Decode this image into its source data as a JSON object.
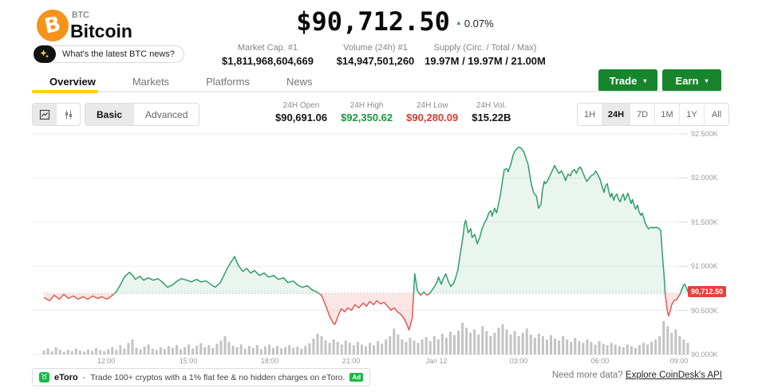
{
  "header": {
    "symbol": "BTC",
    "name": "Bitcoin",
    "news_prompt": "What's the latest BTC news?",
    "price": "$90,712.50",
    "change_pct": "0.07%",
    "stats": [
      {
        "label": "Market Cap. #1",
        "value": "$1,811,968,604,669"
      },
      {
        "label": "Volume (24h) #1",
        "value": "$14,947,501,260"
      },
      {
        "label": "Supply (Circ. / Total / Max)",
        "value": "19.97M / 19.97M / 21.00M"
      }
    ],
    "trade_label": "Trade",
    "earn_label": "Earn"
  },
  "tabs": [
    {
      "label": "Overview",
      "active": true
    },
    {
      "label": "Markets",
      "active": false
    },
    {
      "label": "Platforms",
      "active": false
    },
    {
      "label": "News",
      "active": false
    }
  ],
  "toolbar": {
    "mode_basic": "Basic",
    "mode_advanced": "Advanced",
    "ohlc": [
      {
        "label": "24H Open",
        "value": "$90,691.06",
        "tone": "neutral"
      },
      {
        "label": "24H High",
        "value": "$92,350.62",
        "tone": "up"
      },
      {
        "label": "24H Low",
        "value": "$90,280.09",
        "tone": "down"
      },
      {
        "label": "24H Vol.",
        "value": "$15.22B",
        "tone": "neutral"
      }
    ],
    "ranges": [
      {
        "label": "1H",
        "active": false
      },
      {
        "label": "24H",
        "active": true
      },
      {
        "label": "7D",
        "active": false
      },
      {
        "label": "1M",
        "active": false
      },
      {
        "label": "1Y",
        "active": false
      },
      {
        "label": "All",
        "active": false
      }
    ]
  },
  "colors": {
    "brand_orange": "#f7931a",
    "accent_yellow": "#fcd303",
    "cta_green": "#17852c",
    "line_up": "#2f9e6a",
    "line_down": "#e25a52",
    "badge_red": "#e2443c",
    "high_text": "#179a3f",
    "low_text": "#dd3b2f",
    "ad_green": "#19b847"
  },
  "chart_data": {
    "type": "line",
    "ylim": [
      90000,
      92500
    ],
    "open_price": 90691.06,
    "last_price": 90712.5,
    "last_price_label": "90,712.50",
    "high_price": 92350.62,
    "low_price": 90280.09,
    "y_ticks": [
      {
        "label": "92.500K",
        "value": 92500
      },
      {
        "label": "92.000K",
        "value": 92000
      },
      {
        "label": "91.500K",
        "value": 91500
      },
      {
        "label": "91.000K",
        "value": 91000
      },
      {
        "label": "90.500K",
        "value": 90500
      },
      {
        "label": "90.000K",
        "value": 90000
      }
    ],
    "x_ticks": [
      {
        "label": "12:00",
        "f": 0.0967
      },
      {
        "label": "15:00",
        "f": 0.2243
      },
      {
        "label": "18:00",
        "f": 0.3507
      },
      {
        "label": "21:00",
        "f": 0.4771
      },
      {
        "label": "Jan 12",
        "f": 0.6097
      },
      {
        "label": "03:00",
        "f": 0.7373
      },
      {
        "label": "06:00",
        "f": 0.8637
      },
      {
        "label": "09:00",
        "f": 0.9864
      }
    ],
    "points": [
      [
        0,
        90645
      ],
      [
        0.009,
        90610
      ],
      [
        0.016,
        90672
      ],
      [
        0.024,
        90627
      ],
      [
        0.031,
        90681
      ],
      [
        0.038,
        90636
      ],
      [
        0.046,
        90663
      ],
      [
        0.053,
        90627
      ],
      [
        0.061,
        90654
      ],
      [
        0.068,
        90627
      ],
      [
        0.076,
        90663
      ],
      [
        0.083,
        90636
      ],
      [
        0.09,
        90654
      ],
      [
        0.098,
        90627
      ],
      [
        0.105,
        90663
      ],
      [
        0.112,
        90708
      ],
      [
        0.118,
        90780
      ],
      [
        0.125,
        90878
      ],
      [
        0.133,
        90932
      ],
      [
        0.138,
        90896
      ],
      [
        0.142,
        90851
      ],
      [
        0.149,
        90887
      ],
      [
        0.155,
        90842
      ],
      [
        0.162,
        90869
      ],
      [
        0.17,
        90842
      ],
      [
        0.177,
        90860
      ],
      [
        0.185,
        90815
      ],
      [
        0.192,
        90762
      ],
      [
        0.2,
        90789
      ],
      [
        0.207,
        90833
      ],
      [
        0.214,
        90860
      ],
      [
        0.222,
        90842
      ],
      [
        0.229,
        90824
      ],
      [
        0.237,
        90851
      ],
      [
        0.244,
        90824
      ],
      [
        0.252,
        90833
      ],
      [
        0.259,
        90797
      ],
      [
        0.266,
        90762
      ],
      [
        0.274,
        90815
      ],
      [
        0.28,
        90905
      ],
      [
        0.286,
        90994
      ],
      [
        0.293,
        91075
      ],
      [
        0.296,
        91111
      ],
      [
        0.302,
        91012
      ],
      [
        0.309,
        90941
      ],
      [
        0.315,
        90976
      ],
      [
        0.321,
        90923
      ],
      [
        0.327,
        90950
      ],
      [
        0.335,
        90896
      ],
      [
        0.342,
        90923
      ],
      [
        0.349,
        90878
      ],
      [
        0.357,
        90896
      ],
      [
        0.364,
        90851
      ],
      [
        0.372,
        90869
      ],
      [
        0.379,
        90815
      ],
      [
        0.387,
        90833
      ],
      [
        0.394,
        90789
      ],
      [
        0.401,
        90762
      ],
      [
        0.409,
        90780
      ],
      [
        0.416,
        90735
      ],
      [
        0.424,
        90708
      ],
      [
        0.431,
        90672
      ],
      [
        0.437,
        90565
      ],
      [
        0.444,
        90430
      ],
      [
        0.449,
        90359
      ],
      [
        0.452,
        90341
      ],
      [
        0.457,
        90439
      ],
      [
        0.462,
        90520
      ],
      [
        0.467,
        90484
      ],
      [
        0.472,
        90529
      ],
      [
        0.478,
        90502
      ],
      [
        0.483,
        90565
      ],
      [
        0.489,
        90529
      ],
      [
        0.496,
        90583
      ],
      [
        0.501,
        90547
      ],
      [
        0.506,
        90601
      ],
      [
        0.512,
        90565
      ],
      [
        0.517,
        90610
      ],
      [
        0.523,
        90574
      ],
      [
        0.528,
        90592
      ],
      [
        0.534,
        90547
      ],
      [
        0.539,
        90502
      ],
      [
        0.544,
        90529
      ],
      [
        0.549,
        90484
      ],
      [
        0.554,
        90457
      ],
      [
        0.559,
        90412
      ],
      [
        0.564,
        90341
      ],
      [
        0.567,
        90278
      ],
      [
        0.572,
        90412
      ],
      [
        0.576,
        90914
      ],
      [
        0.58,
        90726
      ],
      [
        0.585,
        90672
      ],
      [
        0.59,
        90708
      ],
      [
        0.595,
        90672
      ],
      [
        0.6,
        90699
      ],
      [
        0.605,
        90753
      ],
      [
        0.61,
        90815
      ],
      [
        0.613,
        90878
      ],
      [
        0.617,
        90797
      ],
      [
        0.621,
        90869
      ],
      [
        0.624,
        90914
      ],
      [
        0.628,
        90833
      ],
      [
        0.632,
        90771
      ],
      [
        0.636,
        90806
      ],
      [
        0.639,
        90860
      ],
      [
        0.643,
        90959
      ],
      [
        0.647,
        91156
      ],
      [
        0.651,
        91344
      ],
      [
        0.653,
        91470
      ],
      [
        0.655,
        91523
      ],
      [
        0.659,
        91380
      ],
      [
        0.663,
        91425
      ],
      [
        0.665,
        91326
      ],
      [
        0.669,
        91362
      ],
      [
        0.673,
        91255
      ],
      [
        0.677,
        91326
      ],
      [
        0.68,
        91416
      ],
      [
        0.684,
        91488
      ],
      [
        0.688,
        91541
      ],
      [
        0.691,
        91604
      ],
      [
        0.694,
        91631
      ],
      [
        0.696,
        91568
      ],
      [
        0.7,
        91658
      ],
      [
        0.703,
        91604
      ],
      [
        0.706,
        91702
      ],
      [
        0.709,
        91810
      ],
      [
        0.712,
        91962
      ],
      [
        0.715,
        92097
      ],
      [
        0.719,
        92106
      ],
      [
        0.721,
        92070
      ],
      [
        0.725,
        92151
      ],
      [
        0.729,
        92267
      ],
      [
        0.732,
        92312
      ],
      [
        0.737,
        92350
      ],
      [
        0.741,
        92339
      ],
      [
        0.745,
        92303
      ],
      [
        0.748,
        92240
      ],
      [
        0.752,
        92151
      ],
      [
        0.756,
        91971
      ],
      [
        0.758,
        91900
      ],
      [
        0.761,
        91828
      ],
      [
        0.765,
        91792
      ],
      [
        0.768,
        91658
      ],
      [
        0.772,
        91702
      ],
      [
        0.774,
        91846
      ],
      [
        0.777,
        91962
      ],
      [
        0.779,
        91935
      ],
      [
        0.783,
        91980
      ],
      [
        0.787,
        92043
      ],
      [
        0.791,
        92106
      ],
      [
        0.793,
        92142
      ],
      [
        0.797,
        92088
      ],
      [
        0.8,
        92052
      ],
      [
        0.804,
        92079
      ],
      [
        0.808,
        92016
      ],
      [
        0.81,
        91971
      ],
      [
        0.814,
        92043
      ],
      [
        0.818,
        92025
      ],
      [
        0.82,
        92070
      ],
      [
        0.824,
        92097
      ],
      [
        0.827,
        92052
      ],
      [
        0.83,
        92106
      ],
      [
        0.833,
        92124
      ],
      [
        0.836,
        92079
      ],
      [
        0.84,
        92007
      ],
      [
        0.843,
        91962
      ],
      [
        0.846,
        91989
      ],
      [
        0.85,
        92025
      ],
      [
        0.854,
        92043
      ],
      [
        0.857,
        92079
      ],
      [
        0.86,
        92043
      ],
      [
        0.864,
        91980
      ],
      [
        0.867,
        91900
      ],
      [
        0.87,
        91837
      ],
      [
        0.872,
        91908
      ],
      [
        0.875,
        91935
      ],
      [
        0.877,
        91855
      ],
      [
        0.88,
        91783
      ],
      [
        0.882,
        91828
      ],
      [
        0.885,
        91747
      ],
      [
        0.887,
        91792
      ],
      [
        0.89,
        91819
      ],
      [
        0.892,
        91765
      ],
      [
        0.895,
        91729
      ],
      [
        0.897,
        91783
      ],
      [
        0.9,
        91819
      ],
      [
        0.902,
        91747
      ],
      [
        0.905,
        91792
      ],
      [
        0.907,
        91828
      ],
      [
        0.91,
        91756
      ],
      [
        0.912,
        91711
      ],
      [
        0.914,
        91756
      ],
      [
        0.917,
        91684
      ],
      [
        0.919,
        91649
      ],
      [
        0.922,
        91693
      ],
      [
        0.924,
        91622
      ],
      [
        0.927,
        91577
      ],
      [
        0.929,
        91604
      ],
      [
        0.932,
        91541
      ],
      [
        0.934,
        91488
      ],
      [
        0.937,
        91443
      ],
      [
        0.939,
        91425
      ],
      [
        0.943,
        91443
      ],
      [
        0.947,
        91434
      ],
      [
        0.95,
        91443
      ],
      [
        0.954,
        91434
      ],
      [
        0.958,
        91407
      ],
      [
        0.96,
        91183
      ],
      [
        0.963,
        90914
      ],
      [
        0.965,
        90672
      ],
      [
        0.968,
        90502
      ],
      [
        0.97,
        90439
      ],
      [
        0.973,
        90502
      ],
      [
        0.975,
        90565
      ],
      [
        0.978,
        90601
      ],
      [
        0.98,
        90619
      ],
      [
        0.983,
        90619
      ],
      [
        0.985,
        90654
      ],
      [
        0.988,
        90681
      ],
      [
        0.99,
        90726
      ],
      [
        0.993,
        90780
      ],
      [
        0.995,
        90798
      ],
      [
        0.998,
        90753
      ],
      [
        1,
        90712.5
      ]
    ],
    "volume": [
      0.12,
      0.18,
      0.1,
      0.22,
      0.15,
      0.08,
      0.14,
      0.1,
      0.18,
      0.12,
      0.09,
      0.15,
      0.11,
      0.19,
      0.13,
      0.1,
      0.16,
      0.22,
      0.14,
      0.28,
      0.18,
      0.35,
      0.45,
      0.2,
      0.16,
      0.24,
      0.3,
      0.18,
      0.14,
      0.22,
      0.17,
      0.25,
      0.2,
      0.28,
      0.16,
      0.22,
      0.3,
      0.18,
      0.26,
      0.34,
      0.22,
      0.28,
      0.2,
      0.32,
      0.42,
      0.55,
      0.38,
      0.26,
      0.22,
      0.3,
      0.18,
      0.26,
      0.2,
      0.28,
      0.16,
      0.24,
      0.3,
      0.2,
      0.26,
      0.18,
      0.22,
      0.28,
      0.2,
      0.24,
      0.18,
      0.26,
      0.34,
      0.48,
      0.62,
      0.55,
      0.42,
      0.35,
      0.45,
      0.38,
      0.3,
      0.42,
      0.35,
      0.28,
      0.38,
      0.3,
      0.25,
      0.35,
      0.28,
      0.4,
      0.32,
      0.45,
      0.55,
      0.78,
      0.6,
      0.45,
      0.38,
      0.5,
      0.42,
      0.35,
      0.45,
      0.52,
      0.4,
      0.55,
      0.45,
      0.62,
      0.5,
      0.68,
      0.58,
      0.72,
      0.95,
      0.8,
      0.65,
      0.75,
      0.6,
      0.85,
      0.7,
      0.55,
      0.65,
      0.8,
      0.9,
      0.75,
      0.6,
      0.7,
      0.55,
      0.65,
      0.78,
      0.6,
      0.5,
      0.62,
      0.55,
      0.45,
      0.58,
      0.48,
      0.42,
      0.55,
      0.45,
      0.38,
      0.5,
      0.4,
      0.35,
      0.45,
      0.38,
      0.3,
      0.4,
      0.32,
      0.28,
      0.35,
      0.3,
      0.25,
      0.22,
      0.3,
      0.25,
      0.2,
      0.28,
      0.35,
      0.3,
      0.38,
      0.45,
      0.55,
      1.0,
      0.85,
      0.65,
      0.75,
      0.55,
      0.45,
      0.35
    ]
  },
  "footer": {
    "ad": {
      "brand": "eToro",
      "sep": "-",
      "text": "Trade 100+ cryptos with a 1% flat fee & no hidden charges on eToro.",
      "badge": "Ad"
    },
    "api_prompt": "Need more data?",
    "api_link": "Explore CoinDesk's API"
  }
}
